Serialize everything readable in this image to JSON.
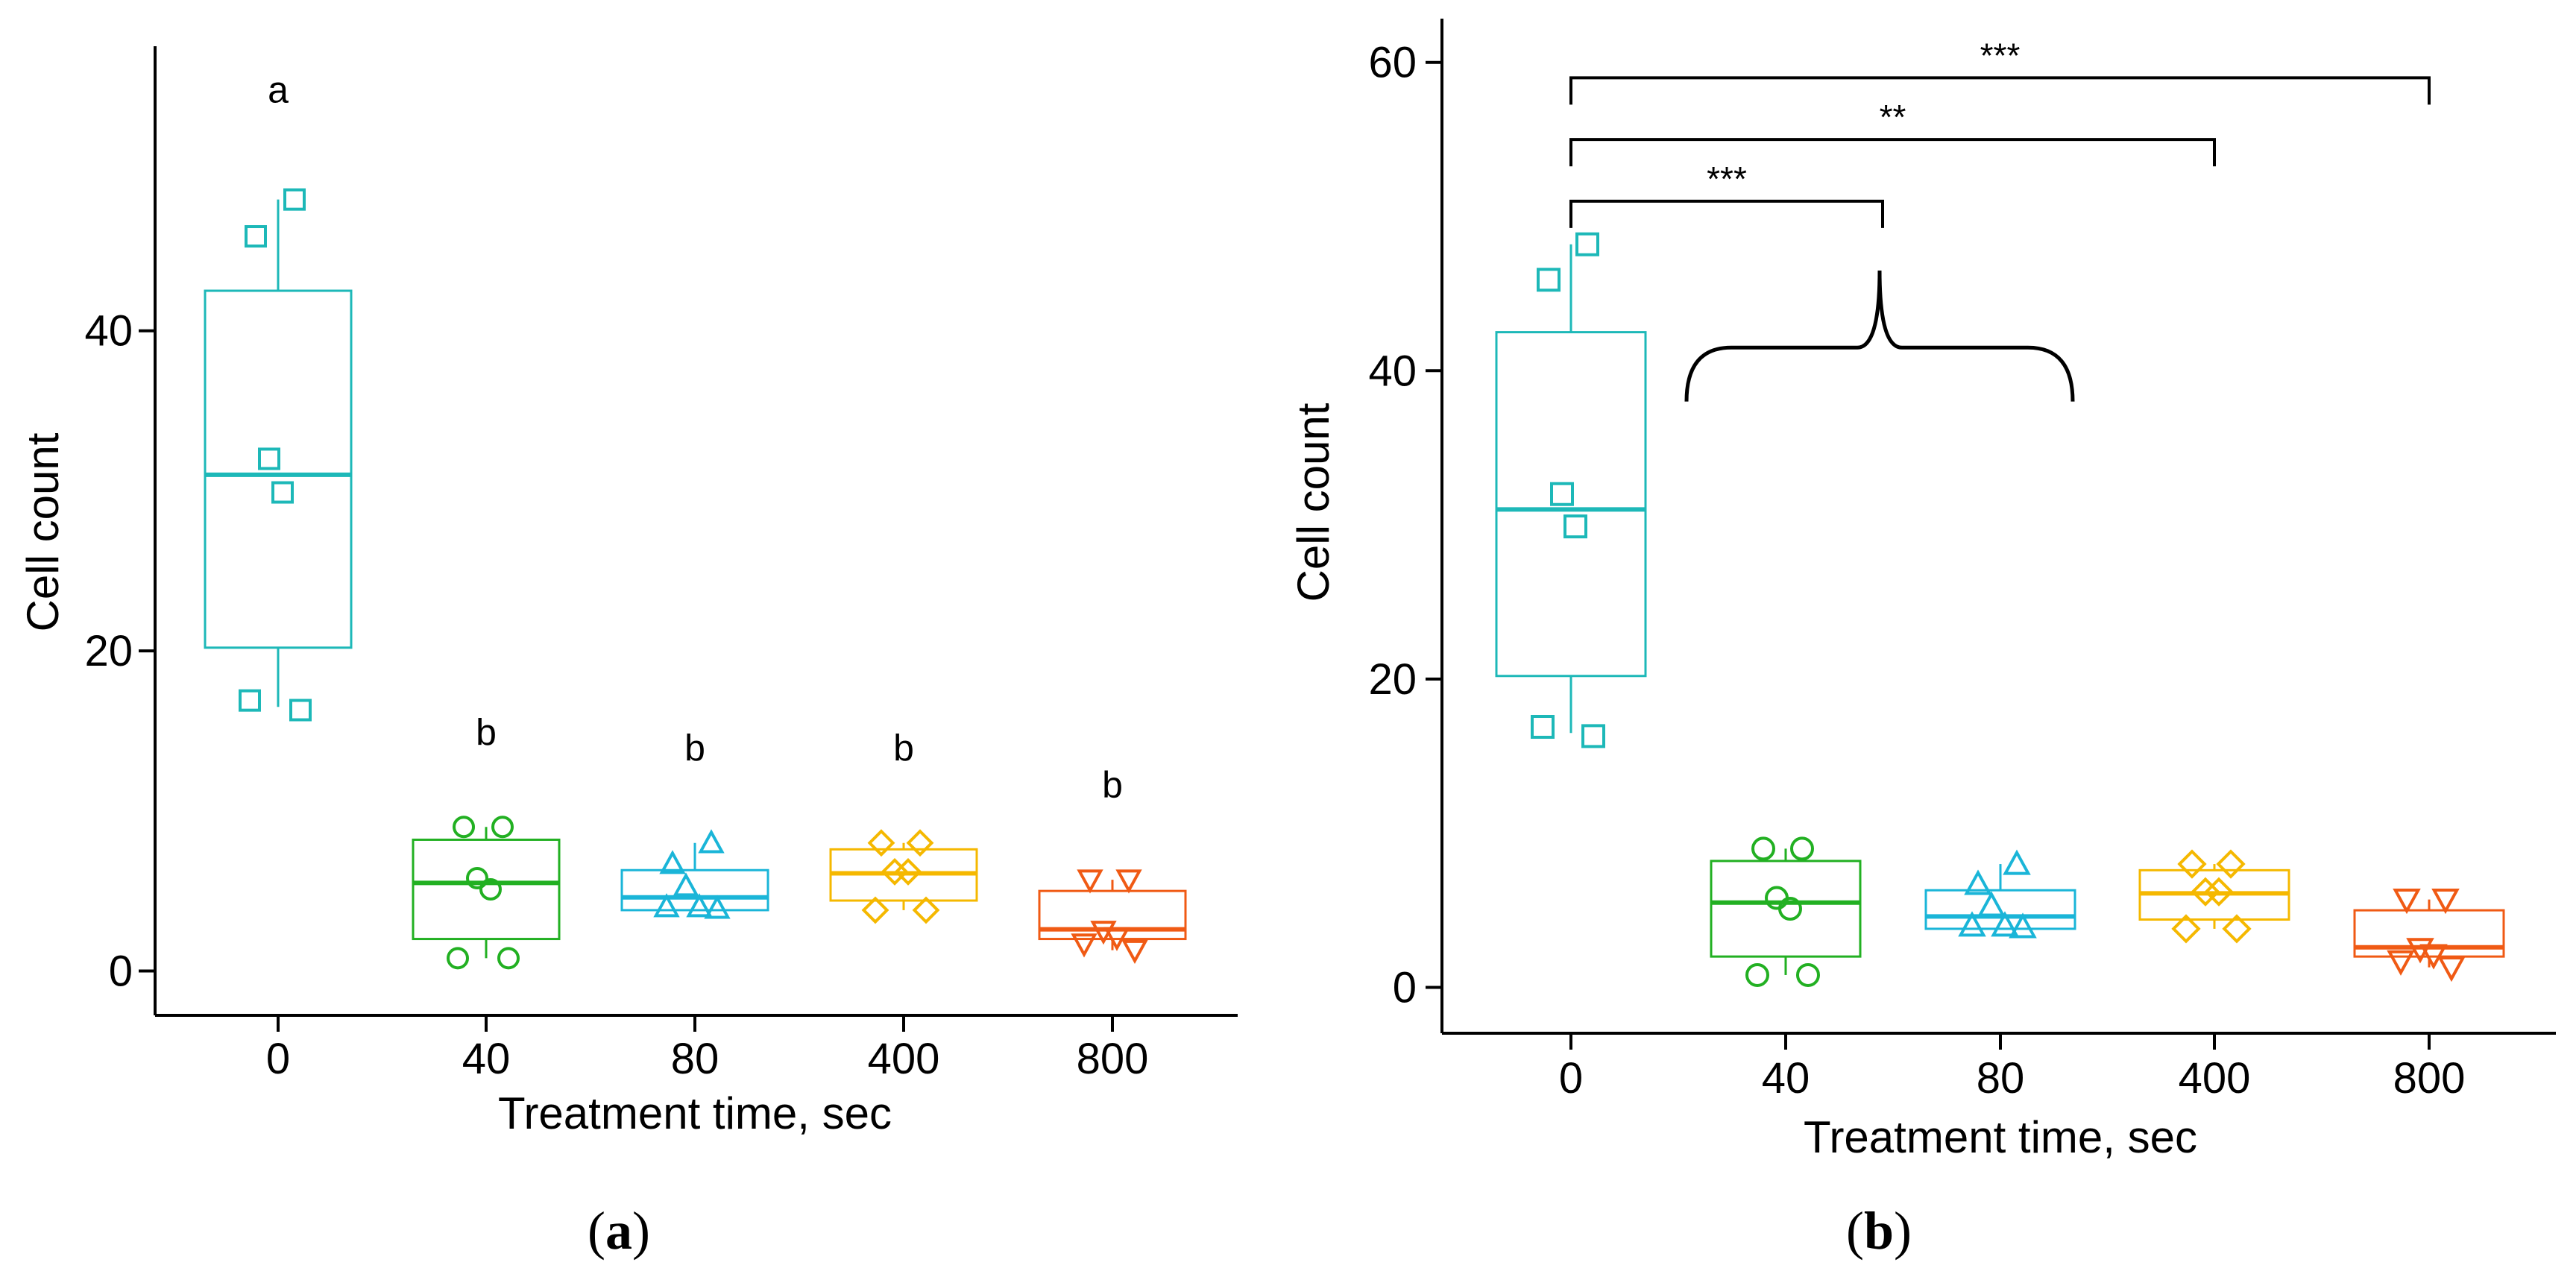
{
  "chart_data": [
    {
      "panel": "(a)",
      "type": "box",
      "xlabel": "Treatment time, sec",
      "ylabel": "Cell count",
      "ylim": [
        -3,
        57
      ],
      "yticks": [
        0,
        20,
        40
      ],
      "categories": [
        "0",
        "40",
        "80",
        "400",
        "800"
      ],
      "letters": [
        "a",
        "b",
        "b",
        "b",
        "b"
      ],
      "groups": [
        {
          "name": "0",
          "color": "#1db8b8",
          "marker": "square",
          "q1": 20.2,
          "median": 31,
          "q3": 42.5,
          "whisker_low": 16.5,
          "whisker_high": 48.2,
          "points": [
            48.2,
            45.9,
            32,
            29.9,
            16.9,
            16.3
          ]
        },
        {
          "name": "40",
          "color": "#22b022",
          "marker": "circle",
          "q1": 2,
          "median": 5.5,
          "q3": 8.2,
          "whisker_low": 0.8,
          "whisker_high": 9,
          "points": [
            9,
            9,
            5.8,
            5.1,
            0.8,
            0.8
          ]
        },
        {
          "name": "80",
          "color": "#1ab5d8",
          "marker": "triangle-up",
          "q1": 3.8,
          "median": 4.6,
          "q3": 6.3,
          "whisker_low": 3.8,
          "whisker_high": 8,
          "points": [
            8,
            6.7,
            5.3,
            4,
            4,
            3.9
          ]
        },
        {
          "name": "400",
          "color": "#f5b800",
          "marker": "diamond",
          "q1": 4.4,
          "median": 6.1,
          "q3": 7.6,
          "whisker_low": 3.8,
          "whisker_high": 8,
          "points": [
            8,
            8,
            6.2,
            6.2,
            3.8,
            3.8
          ]
        },
        {
          "name": "800",
          "color": "#f05a14",
          "marker": "triangle-down",
          "q1": 2,
          "median": 2.6,
          "q3": 5,
          "whisker_low": 1.3,
          "whisker_high": 5.7,
          "points": [
            5.7,
            5.7,
            2.5,
            2.1,
            1.7,
            1.3
          ]
        }
      ]
    },
    {
      "panel": "(b)",
      "type": "box",
      "xlabel": "Treatment time, sec",
      "ylabel": "Cell count",
      "ylim": [
        -3,
        63
      ],
      "yticks": [
        0,
        20,
        40,
        60
      ],
      "categories": [
        "0",
        "40",
        "80",
        "400",
        "800"
      ],
      "significance": [
        {
          "from": "0",
          "to": "40",
          "label": "***",
          "y": 51
        },
        {
          "from": "0",
          "to": "400",
          "label": "**",
          "y": 55
        },
        {
          "from": "0",
          "to": "800",
          "label": "***",
          "y": 59
        }
      ],
      "groups": [
        {
          "name": "0",
          "color": "#1db8b8",
          "marker": "square",
          "q1": 20.2,
          "median": 31,
          "q3": 42.5,
          "whisker_low": 16.5,
          "whisker_high": 48.2,
          "points": [
            48.2,
            45.9,
            32,
            29.9,
            16.9,
            16.3
          ]
        },
        {
          "name": "40",
          "color": "#22b022",
          "marker": "circle",
          "q1": 2,
          "median": 5.5,
          "q3": 8.2,
          "whisker_low": 0.8,
          "whisker_high": 9,
          "points": [
            9,
            9,
            5.8,
            5.1,
            0.8,
            0.8
          ]
        },
        {
          "name": "80",
          "color": "#1ab5d8",
          "marker": "triangle-up",
          "q1": 3.8,
          "median": 4.6,
          "q3": 6.3,
          "whisker_low": 3.8,
          "whisker_high": 8,
          "points": [
            8,
            6.7,
            5.3,
            4,
            4,
            3.9
          ]
        },
        {
          "name": "400",
          "color": "#f5b800",
          "marker": "diamond",
          "q1": 4.4,
          "median": 6.1,
          "q3": 7.6,
          "whisker_low": 3.8,
          "whisker_high": 8,
          "points": [
            8,
            8,
            6.2,
            6.2,
            3.8,
            3.8
          ]
        },
        {
          "name": "800",
          "color": "#f05a14",
          "marker": "triangle-down",
          "q1": 2,
          "median": 2.6,
          "q3": 5,
          "whisker_low": 1.3,
          "whisker_high": 5.7,
          "points": [
            5.7,
            5.7,
            2.5,
            2.1,
            1.7,
            1.3
          ]
        }
      ]
    }
  ],
  "captions": {
    "a": {
      "open": "(",
      "letter": "a",
      "close": ")"
    },
    "b": {
      "open": "(",
      "letter": "b",
      "close": ")"
    }
  }
}
